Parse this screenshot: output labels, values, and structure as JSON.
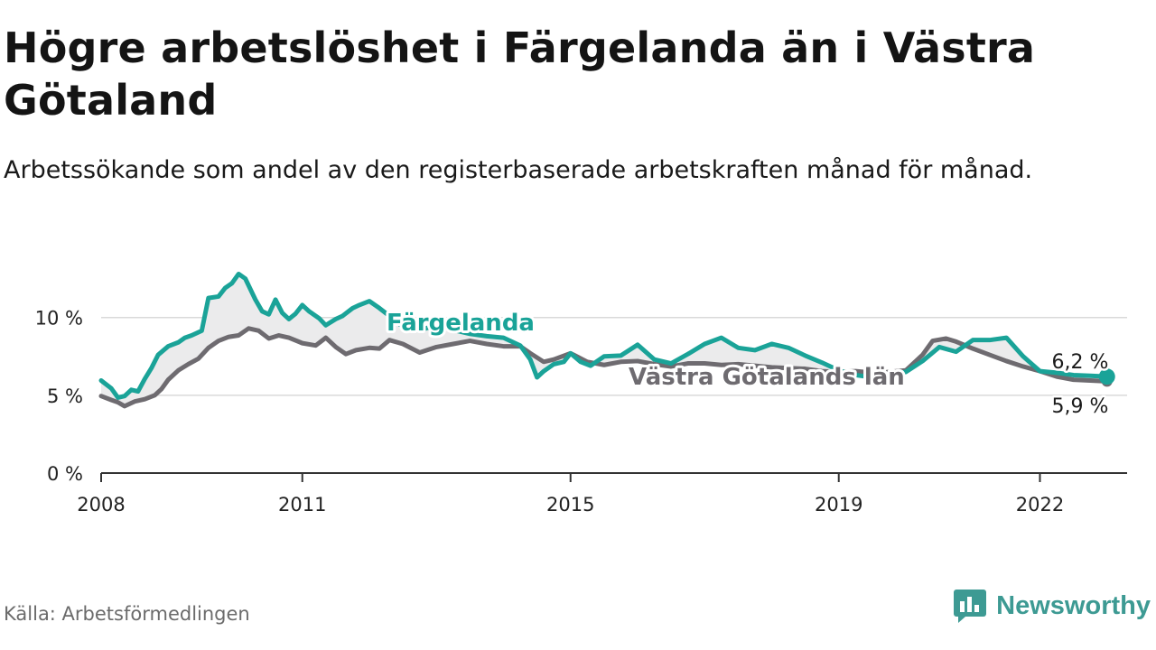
{
  "header": {
    "title": "Högre arbetslöshet i Färgelanda än i Västra Götaland",
    "subtitle": "Arbetssökande som andel av den registerbaserade arbetskraften månad för månad."
  },
  "footer": {
    "source": "Källa: Arbetsförmedlingen",
    "brand": "Newsworthy"
  },
  "colors": {
    "fargelanda": "#1aa398",
    "vastra": "#6e6b70",
    "band": "#ebebec",
    "grid": "#d9d9d9",
    "axis": "#333333",
    "brand": "#3d9a93"
  },
  "chart_data": {
    "type": "line",
    "title": "Högre arbetslöshet i Färgelanda än i Västra Götaland",
    "xlabel": "",
    "ylabel": "",
    "xlim": [
      2008,
      2023.3
    ],
    "ylim": [
      0,
      13
    ],
    "y_ticks": [
      0,
      5,
      10
    ],
    "y_tick_labels": [
      "0 %",
      "5 %",
      "10 %"
    ],
    "x_ticks": [
      2008,
      2011,
      2015,
      2019,
      2022
    ],
    "x_tick_labels": [
      "2008",
      "2011",
      "2015",
      "2019",
      "2022"
    ],
    "grid": true,
    "series": [
      {
        "name": "Färgelanda",
        "label": "Färgelanda",
        "end_value_label": "6,2 %",
        "x": [
          2008.0,
          2008.15,
          2008.25,
          2008.35,
          2008.45,
          2008.55,
          2008.65,
          2008.75,
          2008.85,
          2009.0,
          2009.15,
          2009.25,
          2009.35,
          2009.5,
          2009.6,
          2009.75,
          2009.85,
          2009.95,
          2010.05,
          2010.15,
          2010.3,
          2010.4,
          2010.5,
          2010.6,
          2010.7,
          2010.8,
          2010.9,
          2011.0,
          2011.1,
          2011.25,
          2011.35,
          2011.5,
          2011.6,
          2011.75,
          2011.85,
          2012.0,
          2012.15,
          2012.3,
          2012.5,
          2012.75,
          2013.0,
          2013.25,
          2013.5,
          2013.75,
          2014.0,
          2014.25,
          2014.4,
          2014.5,
          2014.6,
          2014.75,
          2014.9,
          2015.0,
          2015.15,
          2015.3,
          2015.5,
          2015.75,
          2016.0,
          2016.25,
          2016.5,
          2016.75,
          2017.0,
          2017.25,
          2017.5,
          2017.75,
          2018.0,
          2018.25,
          2018.5,
          2018.75,
          2019.0,
          2019.25,
          2019.5,
          2019.75,
          2020.0,
          2020.25,
          2020.5,
          2020.75,
          2021.0,
          2021.25,
          2021.5,
          2021.75,
          2022.0,
          2022.25,
          2022.5,
          2022.75,
          2023.0
        ],
        "values": [
          5.95,
          5.45,
          4.85,
          4.95,
          5.35,
          5.25,
          6.05,
          6.75,
          7.6,
          8.15,
          8.4,
          8.7,
          8.85,
          9.15,
          11.25,
          11.35,
          11.9,
          12.2,
          12.8,
          12.5,
          11.15,
          10.4,
          10.2,
          11.15,
          10.3,
          9.9,
          10.25,
          10.8,
          10.4,
          9.95,
          9.5,
          9.9,
          10.1,
          10.6,
          10.8,
          11.05,
          10.6,
          10.1,
          9.4,
          9.15,
          9.55,
          9.2,
          8.95,
          8.8,
          8.7,
          8.2,
          7.3,
          6.15,
          6.55,
          7.0,
          7.15,
          7.7,
          7.15,
          6.9,
          7.5,
          7.55,
          8.25,
          7.3,
          7.05,
          7.65,
          8.3,
          8.7,
          8.05,
          7.9,
          8.3,
          8.05,
          7.55,
          7.1,
          6.6,
          6.3,
          6.15,
          6.3,
          6.5,
          7.2,
          8.1,
          7.8,
          8.55,
          8.55,
          8.7,
          7.5,
          6.55,
          6.45,
          6.3,
          6.25,
          6.2
        ]
      },
      {
        "name": "Västra Götalands län",
        "label": "Västra Götalands län",
        "end_value_label": "5,9 %",
        "x": [
          2008.0,
          2008.15,
          2008.25,
          2008.35,
          2008.5,
          2008.65,
          2008.8,
          2008.9,
          2009.0,
          2009.15,
          2009.3,
          2009.45,
          2009.6,
          2009.75,
          2009.9,
          2010.05,
          2010.2,
          2010.35,
          2010.5,
          2010.65,
          2010.8,
          2011.0,
          2011.2,
          2011.35,
          2011.5,
          2011.65,
          2011.8,
          2012.0,
          2012.15,
          2012.3,
          2012.5,
          2012.75,
          2013.0,
          2013.25,
          2013.5,
          2013.75,
          2014.0,
          2014.25,
          2014.4,
          2014.6,
          2014.75,
          2015.0,
          2015.25,
          2015.5,
          2015.75,
          2016.0,
          2016.25,
          2016.5,
          2016.75,
          2017.0,
          2017.25,
          2017.5,
          2017.75,
          2018.0,
          2018.25,
          2018.5,
          2018.75,
          2019.0,
          2019.25,
          2019.5,
          2019.75,
          2020.0,
          2020.25,
          2020.4,
          2020.6,
          2020.75,
          2021.0,
          2021.25,
          2021.5,
          2021.75,
          2022.0,
          2022.25,
          2022.5,
          2022.75,
          2023.0
        ],
        "values": [
          4.95,
          4.7,
          4.55,
          4.3,
          4.6,
          4.75,
          5.0,
          5.4,
          6.0,
          6.6,
          7.0,
          7.35,
          8.05,
          8.5,
          8.75,
          8.85,
          9.3,
          9.15,
          8.65,
          8.85,
          8.7,
          8.35,
          8.2,
          8.7,
          8.1,
          7.65,
          7.9,
          8.05,
          8.0,
          8.55,
          8.3,
          7.75,
          8.1,
          8.3,
          8.5,
          8.3,
          8.15,
          8.15,
          7.7,
          7.15,
          7.3,
          7.7,
          7.15,
          6.95,
          7.15,
          7.2,
          7.0,
          6.85,
          7.05,
          7.05,
          6.95,
          7.0,
          6.9,
          6.8,
          6.75,
          6.7,
          6.55,
          6.5,
          6.55,
          6.45,
          6.5,
          6.6,
          7.6,
          8.5,
          8.65,
          8.45,
          8.0,
          7.6,
          7.2,
          6.85,
          6.55,
          6.2,
          6.0,
          5.95,
          5.9
        ]
      }
    ]
  }
}
